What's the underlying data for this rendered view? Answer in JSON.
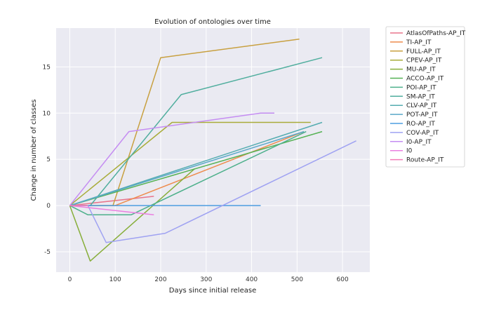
{
  "chart_data": {
    "type": "line",
    "title": "Evolution of ontologies over time",
    "xlabel": "Days since initial release",
    "ylabel": "Change in number of classes",
    "xlim": [
      -30,
      660
    ],
    "ylim": [
      -7.2,
      19.2
    ],
    "xticks": [
      0,
      100,
      200,
      300,
      400,
      500,
      600
    ],
    "yticks": [
      -5,
      0,
      5,
      10,
      15
    ],
    "grid": true,
    "background": "#eaeaf2",
    "legend_position": "outside-right",
    "series": [
      {
        "name": "AtlasOfPaths-AP_IT",
        "color": "#e8758c",
        "x": [
          0,
          185
        ],
        "y": [
          0,
          1
        ]
      },
      {
        "name": "TI-AP_IT",
        "color": "#ee8c4d",
        "x": [
          0,
          100,
          515
        ],
        "y": [
          0,
          0,
          8
        ]
      },
      {
        "name": "FULL-AP_IT",
        "color": "#c8a040",
        "x": [
          0,
          95,
          200,
          505
        ],
        "y": [
          0,
          0,
          16,
          18
        ]
      },
      {
        "name": "CPEV-AP_IT",
        "color": "#a8ac3a",
        "x": [
          0,
          225,
          530
        ],
        "y": [
          0,
          9,
          9
        ]
      },
      {
        "name": "MU-AP_IT",
        "color": "#87ae3a",
        "x": [
          0,
          45,
          275
        ],
        "y": [
          0,
          -6,
          4
        ]
      },
      {
        "name": "ACCO-AP_IT",
        "color": "#55b254",
        "x": [
          0,
          555
        ],
        "y": [
          0,
          8
        ]
      },
      {
        "name": "POI-AP_IT",
        "color": "#4db08b",
        "x": [
          0,
          40,
          135,
          520
        ],
        "y": [
          0,
          -1,
          -1,
          8
        ]
      },
      {
        "name": "SM-AP_IT",
        "color": "#50ae9e",
        "x": [
          0,
          45,
          245,
          555
        ],
        "y": [
          0,
          0,
          12,
          16
        ]
      },
      {
        "name": "CLV-AP_IT",
        "color": "#54acb0",
        "x": [
          0,
          555
        ],
        "y": [
          0,
          9
        ]
      },
      {
        "name": "POT-AP_IT",
        "color": "#5aa8c8",
        "x": [
          0,
          515
        ],
        "y": [
          0,
          8
        ]
      },
      {
        "name": "RO-AP_IT",
        "color": "#4d9de0",
        "x": [
          0,
          420
        ],
        "y": [
          0,
          0
        ]
      },
      {
        "name": "COV-AP_IT",
        "color": "#9fa2f2",
        "x": [
          0,
          40,
          80,
          210,
          630
        ],
        "y": [
          0,
          0,
          -4,
          -3,
          7
        ]
      },
      {
        "name": "I0-AP_IT",
        "color": "#c58df2",
        "x": [
          0,
          130,
          420,
          450
        ],
        "y": [
          0,
          8,
          10,
          10
        ]
      },
      {
        "name": "I0",
        "color": "#ea7fe0",
        "x": [
          0,
          185
        ],
        "y": [
          0,
          -1
        ]
      },
      {
        "name": "Route-AP_IT",
        "color": "#f27ab8",
        "x": [
          0,
          40
        ],
        "y": [
          0,
          0
        ]
      }
    ]
  }
}
